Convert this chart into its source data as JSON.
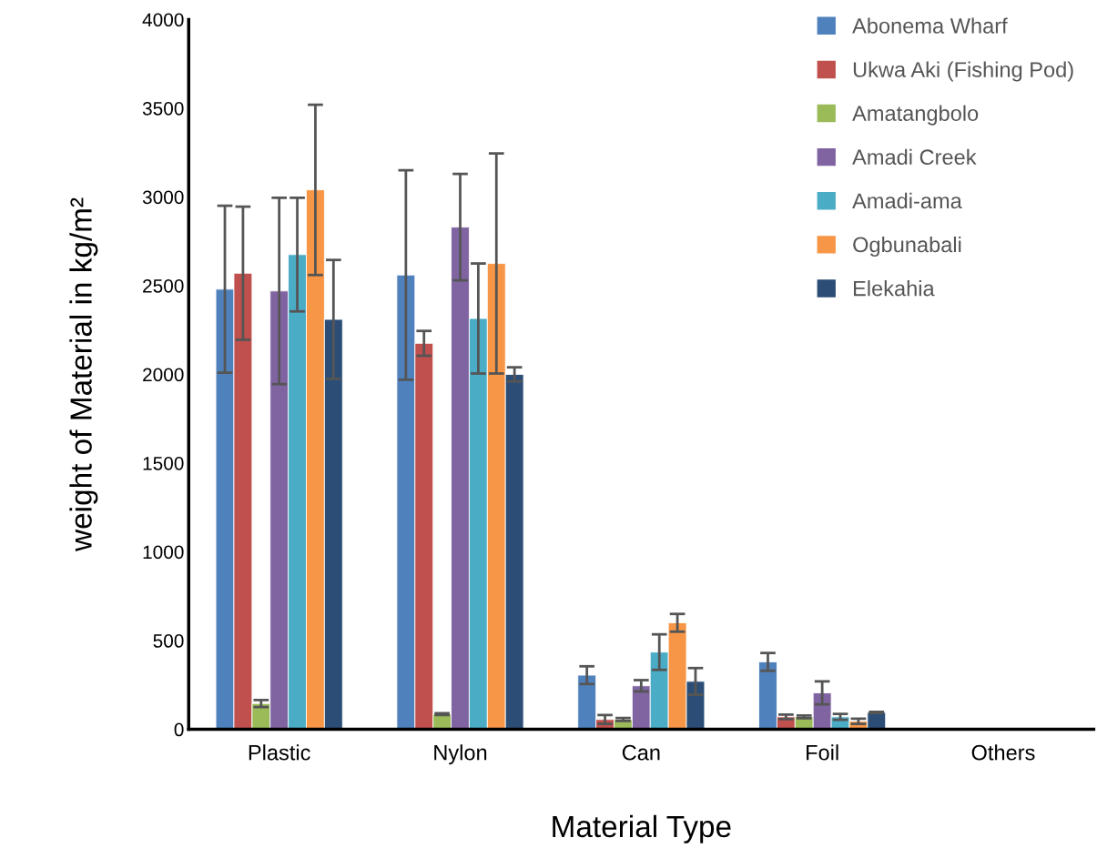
{
  "chart_data": {
    "type": "bar",
    "xlabel": "Material Type",
    "ylabel": "weight of Material in kg/m²",
    "categories": [
      "Plastic",
      "Nylon",
      "Can",
      "Foil",
      "Others"
    ],
    "ylim": [
      0,
      4000
    ],
    "yticks": [
      0,
      500,
      1000,
      1500,
      2000,
      2500,
      3000,
      3500,
      4000
    ],
    "grid": false,
    "legend": "top right",
    "series": [
      {
        "name": "Abonema Wharf",
        "color": "#4f81bd",
        "values": [
          2480,
          2560,
          305,
          380,
          null
        ],
        "errors": [
          470,
          590,
          50,
          50,
          null
        ]
      },
      {
        "name": "Ukwa Aki (Fishing Pod)",
        "color": "#c0504d",
        "values": [
          2570,
          2175,
          55,
          70,
          null
        ],
        "errors": [
          375,
          70,
          25,
          13,
          null
        ]
      },
      {
        "name": "Amatangbolo",
        "color": "#9bbb59",
        "values": [
          145,
          85,
          55,
          70,
          null
        ],
        "errors": [
          20,
          5,
          8,
          8,
          null
        ]
      },
      {
        "name": "Amadi Creek",
        "color": "#8064a2",
        "values": [
          2470,
          2830,
          245,
          205,
          null
        ],
        "errors": [
          525,
          300,
          32,
          65,
          null
        ]
      },
      {
        "name": "Amadi-ama",
        "color": "#4bacc6",
        "values": [
          2675,
          2315,
          435,
          70,
          null
        ],
        "errors": [
          320,
          310,
          100,
          17,
          null
        ]
      },
      {
        "name": "Ogbunabali",
        "color": "#f79646",
        "values": [
          3040,
          2625,
          600,
          45,
          null
        ],
        "errors": [
          480,
          620,
          50,
          15,
          null
        ]
      },
      {
        "name": "Elekahia",
        "color": "#2c4d75",
        "values": [
          2310,
          2000,
          270,
          95,
          null
        ],
        "errors": [
          335,
          40,
          75,
          3,
          null
        ]
      }
    ]
  }
}
